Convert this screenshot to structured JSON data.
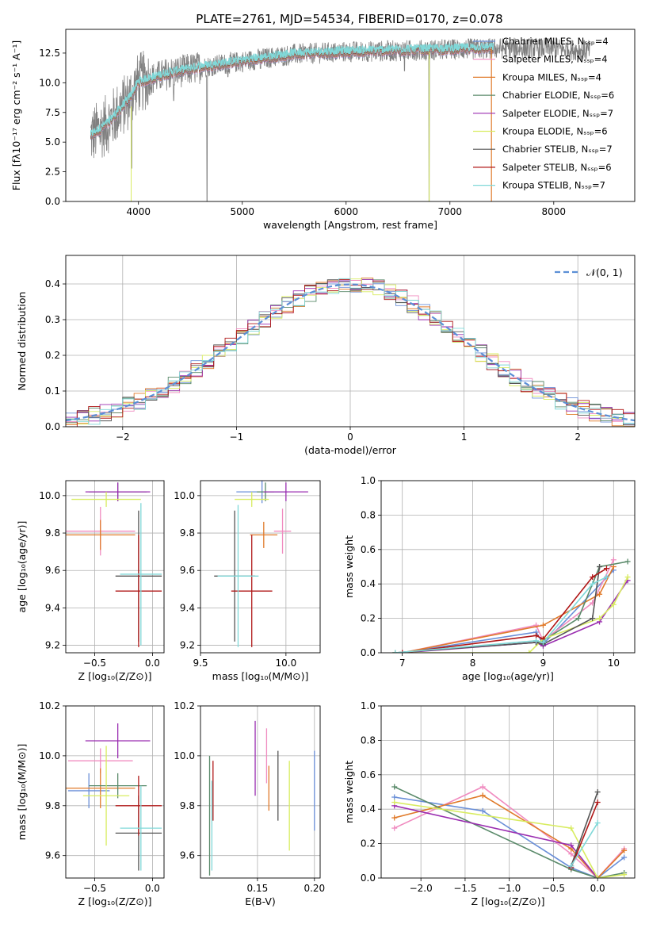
{
  "title": "PLATE=2761, MJD=54534, FIBERID=0170, z=0.078",
  "colors": {
    "chabrier_miles": "#6a8fd8",
    "salpeter_miles": "#f08cc0",
    "kroupa_miles": "#e07a2a",
    "chabrier_elodie": "#5a8a6a",
    "salpeter_elodie": "#9a2db0",
    "kroupa_elodie": "#d8ec60",
    "chabrier_stelib": "#555555",
    "salpeter_stelib": "#b01818",
    "kroupa_stelib": "#80d8d8",
    "data": "#808080",
    "gauss": "#5b8fd6"
  },
  "chart_data": [
    {
      "id": "spectrum",
      "type": "line",
      "xlabel": "wavelength [Angstrom, rest frame]",
      "ylabel": "Flux [fλ10⁻¹⁷ erg cm⁻² s⁻¹ A⁻¹]",
      "xlim": [
        3300,
        8780
      ],
      "ylim": [
        0,
        14.5
      ],
      "xticks": [
        "4000",
        "5000",
        "6000",
        "7000",
        "8000"
      ],
      "yticks": [
        "0.0",
        "2.5",
        "5.0",
        "7.5",
        "10.0",
        "12.5"
      ],
      "x_range": [
        3540,
        8350
      ],
      "model_range": [
        3540,
        7420
      ],
      "legend_position": "right",
      "legend": [
        "Chabrier MILES, Nₛₛₚ=4",
        "Salpeter MILES, Nₛₛₚ=4",
        "Kroupa MILES, Nₛₛₚ=4",
        "Chabrier ELODIE, Nₛₛₚ=6",
        "Salpeter ELODIE, Nₛₛₚ=7",
        "Kroupa ELODIE, Nₛₛₚ=6",
        "Chabrier STELIB, Nₛₛₚ=7",
        "Salpeter STELIB, Nₛₛₚ=6",
        "Kroupa STELIB, Nₛₛₚ=7"
      ],
      "anchors": [
        [
          3540,
          5.5
        ],
        [
          3700,
          6.5
        ],
        [
          3900,
          8.5
        ],
        [
          4000,
          10.0
        ],
        [
          4300,
          10.8
        ],
        [
          4600,
          11.3
        ],
        [
          5000,
          11.8
        ],
        [
          5500,
          12.4
        ],
        [
          6000,
          12.6
        ],
        [
          6500,
          12.7
        ],
        [
          7000,
          12.8
        ],
        [
          7500,
          12.9
        ],
        [
          8000,
          12.9
        ],
        [
          8350,
          12.7
        ]
      ],
      "dips": [
        [
          3933,
          2.8
        ],
        [
          4340,
          8.5
        ],
        [
          4661,
          0.0
        ],
        [
          4861,
          10.5
        ],
        [
          5175,
          11.2
        ],
        [
          6563,
          11.0
        ],
        [
          6800,
          0.0
        ]
      ]
    },
    {
      "id": "residuals",
      "type": "line",
      "xlabel": "(data-model)/error",
      "ylabel": "Normed distribution",
      "xlim": [
        -2.5,
        2.5
      ],
      "ylim": [
        0,
        0.48
      ],
      "xticks": [
        "−2",
        "−1",
        "0",
        "1",
        "2"
      ],
      "yticks": [
        "0.0",
        "0.1",
        "0.2",
        "0.3",
        "0.4"
      ],
      "grid": true,
      "legend": "𝒩(0, 1)",
      "legend_position": "top-right",
      "bin_width": 0.1
    },
    {
      "id": "age_vs_Z",
      "type": "scatter",
      "xlabel": "Z [log₁₀(Z/Z⊙)]",
      "ylabel": "age  [log₁₀(age/yr)]",
      "xlim": [
        -0.75,
        0.1
      ],
      "ylim": [
        9.16,
        10.08
      ],
      "xticks": [
        "−0.5",
        "0.0"
      ],
      "yticks": [
        "9.2",
        "9.4",
        "9.6",
        "9.8",
        "10.0"
      ],
      "grid": true,
      "points": [
        {
          "x": -0.55,
          "y": 10.02,
          "ex": 0.0,
          "ey": 0.0,
          "c": "#6a8fd8"
        },
        {
          "x": -0.45,
          "y": 9.81,
          "ex": 0.3,
          "ey": 0.13,
          "c": "#f08cc0"
        },
        {
          "x": -0.45,
          "y": 9.79,
          "ex": 0.3,
          "ey": 0.08,
          "c": "#e07a2a"
        },
        {
          "x": -0.3,
          "y": 10.02,
          "ex": 0.25,
          "ey": 0.05,
          "c": "#5a8a6a"
        },
        {
          "x": -0.3,
          "y": 10.02,
          "ex": 0.28,
          "ey": 0.05,
          "c": "#9a2db0"
        },
        {
          "x": -0.4,
          "y": 9.98,
          "ex": 0.3,
          "ey": 0.04,
          "c": "#d8ec60"
        },
        {
          "x": -0.12,
          "y": 9.57,
          "ex": 0.2,
          "ey": 0.35,
          "c": "#555555"
        },
        {
          "x": -0.12,
          "y": 9.49,
          "ex": 0.2,
          "ey": 0.3,
          "c": "#b01818"
        },
        {
          "x": -0.1,
          "y": 9.58,
          "ex": 0.18,
          "ey": 0.38,
          "c": "#80d8d8"
        }
      ]
    },
    {
      "id": "age_vs_mass",
      "type": "scatter",
      "xlabel": "mass [log₁₀(M/M⊙)]",
      "ylabel": "",
      "xlim": [
        9.5,
        10.2
      ],
      "ylim": [
        9.16,
        10.08
      ],
      "xticks": [
        "9.5",
        "10.0"
      ],
      "yticks": [
        "9.2",
        "9.4",
        "9.6",
        "9.8",
        "10.0"
      ],
      "grid": true,
      "points": [
        {
          "x": 9.86,
          "y": 10.02,
          "ex": 0.15,
          "ey": 0.06,
          "c": "#6a8fd8"
        },
        {
          "x": 9.98,
          "y": 9.81,
          "ex": 0.05,
          "ey": 0.12,
          "c": "#f08cc0"
        },
        {
          "x": 9.87,
          "y": 9.79,
          "ex": 0.08,
          "ey": 0.07,
          "c": "#e07a2a"
        },
        {
          "x": 9.88,
          "y": 10.02,
          "ex": 0.05,
          "ey": 0.05,
          "c": "#5a8a6a"
        },
        {
          "x": 10.0,
          "y": 10.02,
          "ex": 0.13,
          "ey": 0.05,
          "c": "#9a2db0"
        },
        {
          "x": 9.8,
          "y": 9.98,
          "ex": 0.1,
          "ey": 0.04,
          "c": "#d8ec60"
        },
        {
          "x": 9.7,
          "y": 9.57,
          "ex": 0.12,
          "ey": 0.35,
          "c": "#555555"
        },
        {
          "x": 9.8,
          "y": 9.49,
          "ex": 0.12,
          "ey": 0.3,
          "c": "#b01818"
        },
        {
          "x": 9.72,
          "y": 9.57,
          "ex": 0.12,
          "ey": 0.38,
          "c": "#80d8d8"
        }
      ]
    },
    {
      "id": "mass_weight_vs_age",
      "type": "line",
      "xlabel": "age  [log₁₀(age/yr)]",
      "ylabel": "mass weight",
      "xlim": [
        6.7,
        10.3
      ],
      "ylim": [
        0,
        1.0
      ],
      "xticks": [
        "7",
        "8",
        "9",
        "10"
      ],
      "yticks": [
        "0.0",
        "0.2",
        "0.4",
        "0.6",
        "0.8",
        "1.0"
      ],
      "grid": true,
      "series": [
        {
          "c": "#6a8fd8",
          "x": [
            7.0,
            8.9,
            9.0,
            10.0
          ],
          "y": [
            0.0,
            0.12,
            0.05,
            0.48
          ]
        },
        {
          "c": "#f08cc0",
          "x": [
            7.0,
            8.9,
            9.0,
            9.7,
            10.0
          ],
          "y": [
            0.0,
            0.16,
            0.07,
            0.29,
            0.54
          ]
        },
        {
          "c": "#e07a2a",
          "x": [
            7.0,
            9.0,
            9.8,
            10.0
          ],
          "y": [
            0.0,
            0.16,
            0.34,
            0.5
          ]
        },
        {
          "c": "#5a8a6a",
          "x": [
            6.9,
            8.9,
            9.0,
            9.5,
            9.8,
            10.2
          ],
          "y": [
            0.0,
            0.06,
            0.07,
            0.2,
            0.5,
            0.53
          ]
        },
        {
          "c": "#9a2db0",
          "x": [
            7.0,
            8.9,
            9.0,
            9.8,
            10.2
          ],
          "y": [
            0.0,
            0.06,
            0.04,
            0.18,
            0.42
          ]
        },
        {
          "c": "#d8ec60",
          "x": [
            6.9,
            8.8,
            9.0,
            9.8,
            10.0,
            10.2
          ],
          "y": [
            0.0,
            0.0,
            0.08,
            0.2,
            0.28,
            0.44
          ]
        },
        {
          "c": "#555555",
          "x": [
            6.9,
            8.9,
            9.0,
            9.7,
            9.8
          ],
          "y": [
            0.0,
            0.06,
            0.05,
            0.2,
            0.5
          ]
        },
        {
          "c": "#b01818",
          "x": [
            7.0,
            8.9,
            9.0,
            9.7,
            9.9
          ],
          "y": [
            0.0,
            0.1,
            0.08,
            0.44,
            0.49
          ]
        },
        {
          "c": "#80d8d8",
          "x": [
            6.9,
            8.9,
            9.0,
            9.7,
            9.9
          ],
          "y": [
            0.0,
            0.07,
            0.06,
            0.4,
            0.44
          ]
        }
      ]
    },
    {
      "id": "mass_vs_Z",
      "type": "scatter",
      "xlabel": "Z [log₁₀(Z/Z⊙)]",
      "ylabel": "mass [log₁₀(M/M⊙)]",
      "xlim": [
        -0.75,
        0.1
      ],
      "ylim": [
        9.51,
        10.2
      ],
      "xticks": [
        "−0.5",
        "0.0"
      ],
      "yticks": [
        "9.6",
        "9.8",
        "10.0",
        "10.2"
      ],
      "grid": true,
      "points": [
        {
          "x": -0.55,
          "y": 9.86,
          "ex": 0.18,
          "ey": 0.07,
          "c": "#6a8fd8"
        },
        {
          "x": -0.45,
          "y": 9.98,
          "ex": 0.28,
          "ey": 0.05,
          "c": "#f08cc0"
        },
        {
          "x": -0.45,
          "y": 9.87,
          "ex": 0.3,
          "ey": 0.08,
          "c": "#e07a2a"
        },
        {
          "x": -0.3,
          "y": 9.88,
          "ex": 0.25,
          "ey": 0.05,
          "c": "#5a8a6a"
        },
        {
          "x": -0.3,
          "y": 10.06,
          "ex": 0.28,
          "ey": 0.07,
          "c": "#9a2db0"
        },
        {
          "x": -0.4,
          "y": 9.84,
          "ex": 0.2,
          "ey": 0.2,
          "c": "#d8ec60"
        },
        {
          "x": -0.12,
          "y": 9.69,
          "ex": 0.2,
          "ey": 0.15,
          "c": "#555555"
        },
        {
          "x": -0.12,
          "y": 9.8,
          "ex": 0.2,
          "ey": 0.12,
          "c": "#b01818"
        },
        {
          "x": -0.1,
          "y": 9.71,
          "ex": 0.18,
          "ey": 0.17,
          "c": "#80d8d8"
        }
      ]
    },
    {
      "id": "mass_vs_ebv",
      "type": "scatter",
      "xlabel": "E(B-V)",
      "ylabel": "",
      "xlim": [
        0.1,
        0.205
      ],
      "ylim": [
        9.51,
        10.2
      ],
      "xticks": [
        "0.15",
        "0.20"
      ],
      "yticks": [
        "9.6",
        "9.8",
        "10.0",
        "10.2"
      ],
      "grid": true,
      "points": [
        {
          "x": 0.2,
          "y": 9.86,
          "ex": 0.0,
          "ey": 0.16,
          "c": "#6a8fd8"
        },
        {
          "x": 0.158,
          "y": 10.0,
          "ex": 0.0,
          "ey": 0.11,
          "c": "#f08cc0"
        },
        {
          "x": 0.16,
          "y": 9.87,
          "ex": 0.0,
          "ey": 0.09,
          "c": "#e07a2a"
        },
        {
          "x": 0.108,
          "y": 9.76,
          "ex": 0.0,
          "ey": 0.24,
          "c": "#5a8a6a"
        },
        {
          "x": 0.148,
          "y": 9.99,
          "ex": 0.0,
          "ey": 0.15,
          "c": "#9a2db0"
        },
        {
          "x": 0.178,
          "y": 9.8,
          "ex": 0.0,
          "ey": 0.18,
          "c": "#d8ec60"
        },
        {
          "x": 0.168,
          "y": 9.88,
          "ex": 0.0,
          "ey": 0.14,
          "c": "#555555"
        },
        {
          "x": 0.111,
          "y": 9.86,
          "ex": 0.0,
          "ey": 0.12,
          "c": "#b01818"
        },
        {
          "x": 0.11,
          "y": 9.72,
          "ex": 0.0,
          "ey": 0.18,
          "c": "#80d8d8"
        }
      ]
    },
    {
      "id": "mass_weight_vs_Z",
      "type": "line",
      "xlabel": "Z [log₁₀(Z/Z⊙)]",
      "ylabel": "mass weight",
      "xlim": [
        -2.45,
        0.42
      ],
      "ylim": [
        0,
        1.0
      ],
      "xticks": [
        "−2.0",
        "−1.5",
        "−1.0",
        "−0.5",
        "0.0"
      ],
      "yticks": [
        "0.0",
        "0.2",
        "0.4",
        "0.6",
        "0.8",
        "1.0"
      ],
      "grid": true,
      "series": [
        {
          "c": "#6a8fd8",
          "x": [
            -2.3,
            -1.3,
            -0.3,
            0.0,
            0.3
          ],
          "y": [
            0.47,
            0.39,
            0.06,
            0.0,
            0.12
          ]
        },
        {
          "c": "#f08cc0",
          "x": [
            -2.3,
            -1.3,
            -0.3,
            0.0,
            0.3
          ],
          "y": [
            0.29,
            0.53,
            0.14,
            0.0,
            0.17
          ]
        },
        {
          "c": "#e07a2a",
          "x": [
            -2.3,
            -1.3,
            -0.3,
            0.0,
            0.3
          ],
          "y": [
            0.35,
            0.48,
            0.17,
            0.0,
            0.16
          ]
        },
        {
          "c": "#5a8a6a",
          "x": [
            -2.3,
            -0.3,
            0.0,
            0.3
          ],
          "y": [
            0.53,
            0.05,
            0.0,
            0.03
          ]
        },
        {
          "c": "#9a2db0",
          "x": [
            -2.3,
            -0.3,
            0.0
          ],
          "y": [
            0.42,
            0.19,
            0.0
          ]
        },
        {
          "c": "#d8ec60",
          "x": [
            -2.3,
            -0.3,
            0.0,
            0.3
          ],
          "y": [
            0.44,
            0.29,
            0.0,
            0.02
          ]
        },
        {
          "c": "#555555",
          "x": [
            -0.3,
            0.0
          ],
          "y": [
            0.07,
            0.5
          ]
        },
        {
          "c": "#b01818",
          "x": [
            -0.3,
            0.0
          ],
          "y": [
            0.06,
            0.44
          ]
        },
        {
          "c": "#80d8d8",
          "x": [
            -0.3,
            0.0
          ],
          "y": [
            0.07,
            0.32
          ]
        }
      ]
    }
  ]
}
